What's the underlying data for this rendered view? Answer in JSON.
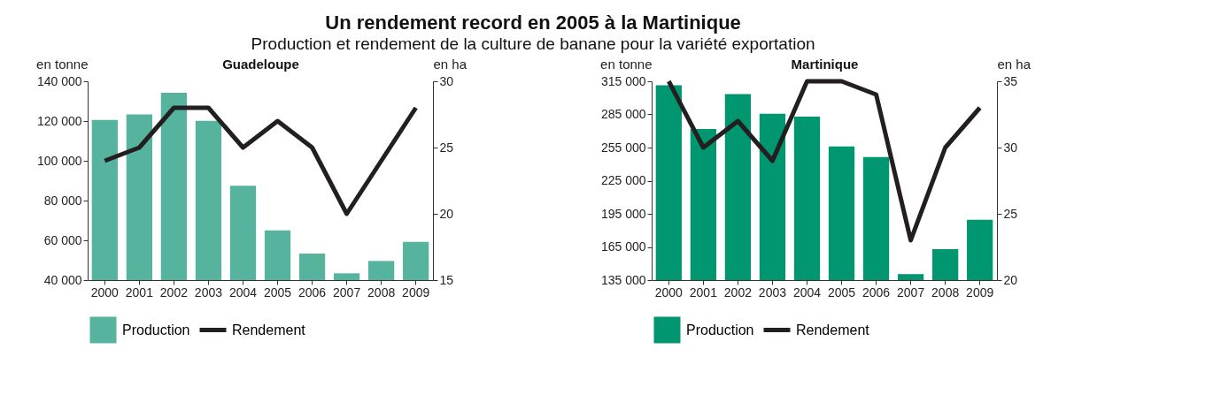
{
  "chart_data": [
    {
      "type": "bar",
      "title": "Un rendement record en 2005 à la Martinique",
      "subtitle": "Production et rendement de la culture de banane pour la variété exportation",
      "xlabel": "Guadeloupe",
      "ylabel": "en tonne",
      "y2label": "en ha",
      "categories": [
        "2000",
        "2001",
        "2002",
        "2003",
        "2004",
        "2005",
        "2006",
        "2007",
        "2008",
        "2009"
      ],
      "series": [
        {
          "name": "Production",
          "color": "#56b39d",
          "values": [
            120600,
            123300,
            134200,
            120100,
            87400,
            65000,
            53300,
            43400,
            49600,
            59200
          ]
        },
        {
          "name": "Rendement",
          "type": "line",
          "axis": "y2",
          "color": "#231f20",
          "values": [
            24,
            25,
            28,
            28,
            25,
            27,
            25,
            20,
            24,
            28
          ]
        }
      ],
      "ylim": [
        40000,
        140000
      ],
      "yticks": [
        {
          "value": 40000,
          "label": "40 000"
        },
        {
          "value": 60000,
          "label": "60 000"
        },
        {
          "value": 80000,
          "label": "80 000"
        },
        {
          "value": 100000,
          "label": "100 000"
        },
        {
          "value": 120000,
          "label": "120 000"
        },
        {
          "value": 140000,
          "label": "140 000"
        }
      ],
      "y2lim": [
        15,
        30
      ],
      "y2ticks": [
        15,
        20,
        25,
        30
      ],
      "grid": false,
      "legend": "bottom",
      "marker": "none",
      "line_style": "solid"
    },
    {
      "type": "bar",
      "xlabel": "Martinique",
      "ylabel": "en tonne",
      "y2label": "en ha",
      "categories": [
        "2000",
        "2001",
        "2002",
        "2003",
        "2004",
        "2005",
        "2006",
        "2007",
        "2008",
        "2009"
      ],
      "series": [
        {
          "name": "Production",
          "color": "#00966f",
          "values": [
            311500,
            271900,
            303500,
            285600,
            283100,
            256000,
            246400,
            140400,
            163100,
            189600
          ]
        },
        {
          "name": "Rendement",
          "type": "line",
          "axis": "y2",
          "color": "#231f20",
          "values": [
            35,
            30,
            32,
            29,
            35,
            35,
            34,
            23,
            30,
            33
          ]
        }
      ],
      "ylim": [
        135000,
        315000
      ],
      "yticks": [
        {
          "value": 135000,
          "label": "135 000"
        },
        {
          "value": 165000,
          "label": "165 000"
        },
        {
          "value": 195000,
          "label": "195 000"
        },
        {
          "value": 225000,
          "label": "225 000"
        },
        {
          "value": 255000,
          "label": "255 000"
        },
        {
          "value": 285000,
          "label": "285 000"
        },
        {
          "value": 315000,
          "label": "315 000"
        }
      ],
      "y2lim": [
        20,
        35
      ],
      "y2ticks": [
        20,
        25,
        30,
        35
      ],
      "grid": false,
      "legend": "bottom",
      "marker": "none",
      "line_style": "solid"
    }
  ]
}
